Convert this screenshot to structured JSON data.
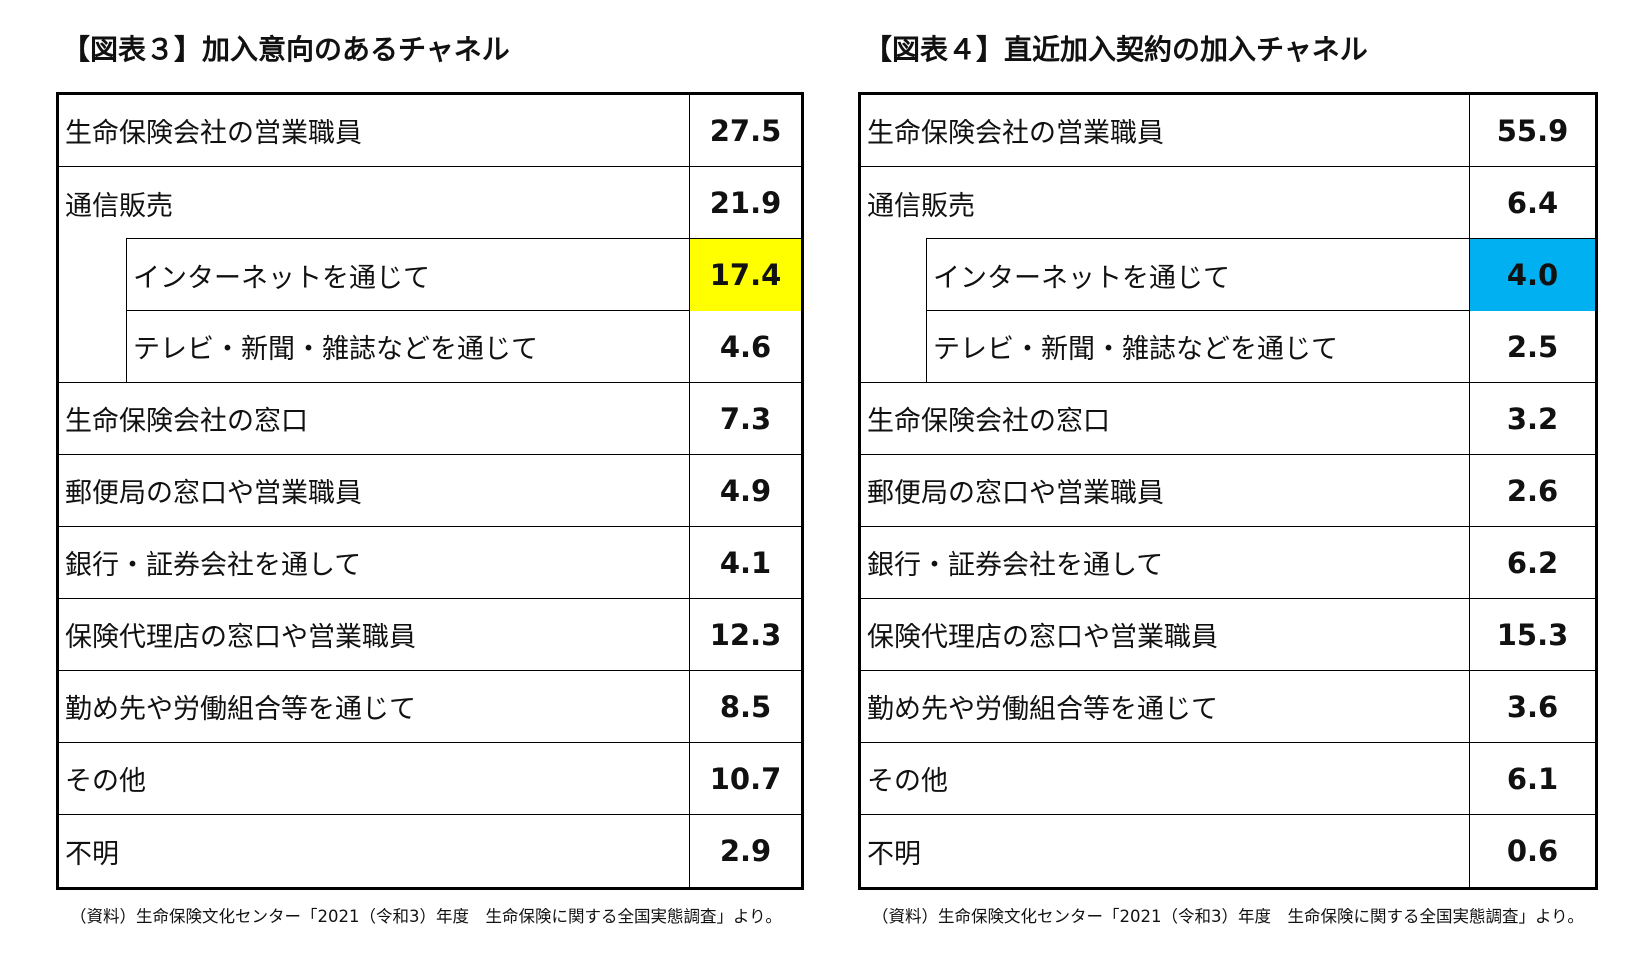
{
  "chart_data": [
    {
      "type": "table",
      "title": "【図表３】加入意向のあるチャネル",
      "source": "（資料）生命保険文化センター「2021（令和3）年度　生命保険に関する全国実態調査」より。",
      "highlight_color": "#ffff00",
      "rows": [
        {
          "label": "生命保険会社の営業職員",
          "value": "27.5",
          "indent": false,
          "highlight": false
        },
        {
          "label": "通信販売",
          "value": "21.9",
          "indent": false,
          "highlight": false
        },
        {
          "label": "インターネットを通じて",
          "value": "17.4",
          "indent": true,
          "highlight": true
        },
        {
          "label": "テレビ・新聞・雑誌などを通じて",
          "value": "4.6",
          "indent": true,
          "highlight": false
        },
        {
          "label": "生命保険会社の窓口",
          "value": "7.3",
          "indent": false,
          "highlight": false
        },
        {
          "label": "郵便局の窓口や営業職員",
          "value": "4.9",
          "indent": false,
          "highlight": false
        },
        {
          "label": "銀行・証券会社を通して",
          "value": "4.1",
          "indent": false,
          "highlight": false
        },
        {
          "label": "保険代理店の窓口や営業職員",
          "value": "12.3",
          "indent": false,
          "highlight": false
        },
        {
          "label": "勤め先や労働組合等を通じて",
          "value": "8.5",
          "indent": false,
          "highlight": false
        },
        {
          "label": "その他",
          "value": "10.7",
          "indent": false,
          "highlight": false
        },
        {
          "label": "不明",
          "value": "2.9",
          "indent": false,
          "highlight": false
        }
      ]
    },
    {
      "type": "table",
      "title": "【図表４】直近加入契約の加入チャネル",
      "source": "（資料）生命保険文化センター「2021（令和3）年度　生命保険に関する全国実態調査」より。",
      "highlight_color": "#00b0f0",
      "rows": [
        {
          "label": "生命保険会社の営業職員",
          "value": "55.9",
          "indent": false,
          "highlight": false
        },
        {
          "label": "通信販売",
          "value": "6.4",
          "indent": false,
          "highlight": false
        },
        {
          "label": "インターネットを通じて",
          "value": "4.0",
          "indent": true,
          "highlight": true
        },
        {
          "label": "テレビ・新聞・雑誌などを通じて",
          "value": "2.5",
          "indent": true,
          "highlight": false
        },
        {
          "label": "生命保険会社の窓口",
          "value": "3.2",
          "indent": false,
          "highlight": false
        },
        {
          "label": "郵便局の窓口や営業職員",
          "value": "2.6",
          "indent": false,
          "highlight": false
        },
        {
          "label": "銀行・証券会社を通して",
          "value": "6.2",
          "indent": false,
          "highlight": false
        },
        {
          "label": "保険代理店の窓口や営業職員",
          "value": "15.3",
          "indent": false,
          "highlight": false
        },
        {
          "label": "勤め先や労働組合等を通じて",
          "value": "3.6",
          "indent": false,
          "highlight": false
        },
        {
          "label": "その他",
          "value": "6.1",
          "indent": false,
          "highlight": false
        },
        {
          "label": "不明",
          "value": "0.6",
          "indent": false,
          "highlight": false
        }
      ]
    }
  ]
}
